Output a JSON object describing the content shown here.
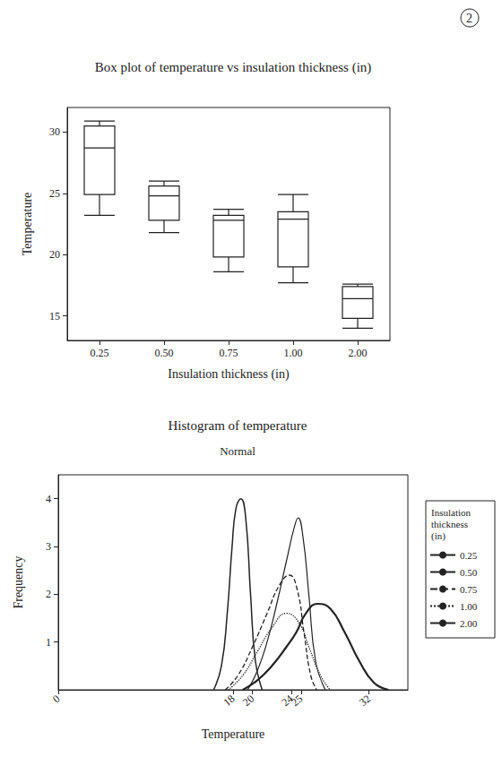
{
  "page_number": "2",
  "chart_data": [
    {
      "type": "boxplot",
      "title": "Box plot of temperature vs insulation thickness (in)",
      "x_label": "Insulation thickness (in)",
      "y_label": "Temperature",
      "categories": [
        "0.25",
        "0.50",
        "0.75",
        "1.00",
        "2.00"
      ],
      "values": [
        [
          23.2,
          24.9,
          28.7,
          30.5,
          30.9
        ],
        [
          21.8,
          22.8,
          24.8,
          25.6,
          26.0
        ],
        [
          18.6,
          19.8,
          22.8,
          23.2,
          23.7
        ],
        [
          17.7,
          19.0,
          22.9,
          23.5,
          24.9
        ],
        [
          14.0,
          14.8,
          16.4,
          17.4,
          17.6
        ]
      ],
      "color": "#222222",
      "ylim": [
        13,
        32
      ],
      "yticks": [
        15,
        20,
        25,
        30
      ],
      "grid": false
    },
    {
      "type": "line",
      "title": "Histogram of temperature",
      "subtitle": "Normal",
      "x_label": "Temperature",
      "y_label": "Frequency",
      "legend_title": "Insulation thickness (in)",
      "legend": "right",
      "xlim": [
        0,
        36
      ],
      "xticks": [
        0,
        18,
        20,
        24,
        25,
        32
      ],
      "ylim": [
        0,
        4.5
      ],
      "yticks": [
        1,
        2,
        3,
        4
      ],
      "grid": false,
      "series": [
        {
          "name": "0.25",
          "color": "#222222",
          "line_style": "solid",
          "x": [
            19,
            20.5,
            22,
            23.5,
            24.5,
            25.5,
            26.7,
            28,
            29.5,
            31,
            32.5,
            34
          ],
          "values": [
            0,
            0.2,
            0.5,
            0.9,
            1.2,
            1.6,
            1.8,
            1.7,
            1.2,
            0.6,
            0.15,
            0
          ]
        },
        {
          "name": "0.50",
          "color": "#222222",
          "line_style": "solid",
          "x": [
            19.5,
            20.5,
            21.5,
            22.5,
            23.5,
            24.3,
            24.7,
            25.2,
            25.8,
            26.5,
            27.5
          ],
          "values": [
            0,
            0.4,
            1.0,
            1.8,
            2.7,
            3.4,
            3.6,
            3.2,
            2.0,
            0.6,
            0
          ]
        },
        {
          "name": "0.75",
          "color": "#222222",
          "line_style": "dashed",
          "x": [
            17.2,
            18.5,
            20,
            21.5,
            22.8,
            23.8,
            24.6,
            25.3,
            26,
            26.6
          ],
          "values": [
            0,
            0.3,
            0.9,
            1.6,
            2.2,
            2.4,
            2.1,
            1.2,
            0.3,
            0
          ]
        },
        {
          "name": "1.00",
          "color": "#222222",
          "line_style": "dotted",
          "x": [
            17.5,
            19,
            20.5,
            22,
            23.5,
            24.8,
            25.8,
            27,
            28
          ],
          "values": [
            0,
            0.3,
            0.8,
            1.3,
            1.6,
            1.4,
            0.9,
            0.3,
            0
          ]
        },
        {
          "name": "2.00",
          "color": "#222222",
          "line_style": "solid",
          "x": [
            16,
            16.8,
            17.4,
            17.9,
            18.3,
            18.8,
            19.3,
            19.8,
            20.3,
            21
          ],
          "values": [
            0,
            0.5,
            1.6,
            3.0,
            3.8,
            4.0,
            3.6,
            2.0,
            0.6,
            0
          ]
        }
      ]
    }
  ]
}
